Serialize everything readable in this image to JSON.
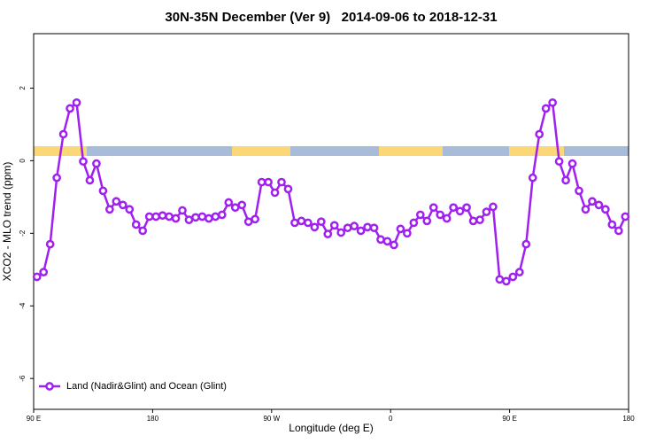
{
  "chart_data": {
    "type": "line",
    "title": "30N-35N December (Ver 9)   2014-09-06 to 2018-12-31",
    "x_label": "Longitude (deg E)",
    "y_label": "XCO2 - MLO trend (ppm)",
    "xlim": [
      90,
      540
    ],
    "xticks": [
      {
        "value": 90,
        "label": "90 E"
      },
      180,
      {
        "value": 270,
        "label": "90 W"
      },
      {
        "value": 360,
        "label": "0"
      },
      {
        "value": 450,
        "label": "90 E"
      },
      {
        "value": 540,
        "label": "180"
      }
    ],
    "ylim": [
      -6.85,
      3.5
    ],
    "yticks": [
      -6,
      -4,
      -2,
      0,
      2
    ],
    "legend": "bottom-left",
    "x": [
      92.5,
      97.5,
      102.5,
      107.5,
      112.5,
      117.5,
      122.5,
      127.5,
      132.5,
      137.5,
      142.5,
      147.5,
      152.5,
      157.5,
      162.5,
      167.5,
      172.5,
      177.5,
      182.5,
      187.5,
      192.5,
      197.5,
      202.5,
      207.5,
      212.5,
      217.5,
      222.5,
      227.5,
      232.5,
      237.5,
      242.5,
      247.5,
      252.5,
      257.5,
      262.5,
      267.5,
      272.5,
      277.5,
      282.5,
      287.5,
      292.5,
      297.5,
      302.5,
      307.5,
      312.5,
      317.5,
      322.5,
      327.5,
      332.5,
      337.5,
      342.5,
      347.5,
      352.5,
      357.5,
      362.5,
      367.5,
      372.5,
      377.5,
      382.5,
      387.5,
      392.5,
      397.5,
      402.5,
      407.5,
      412.5,
      417.5,
      422.5,
      427.5,
      432.5,
      437.5,
      442.5,
      447.5,
      452.5,
      457.5,
      462.5,
      467.5,
      472.5,
      477.5,
      482.5,
      487.5,
      492.5,
      497.5,
      502.5,
      507.5,
      512.5,
      517.5,
      522.5,
      527.5,
      532.5,
      537.5
    ],
    "series": [
      {
        "name": "Land (Nadir&Glint) and Ocean (Glint)",
        "color": "#a020f0",
        "values": [
          -3.2,
          -3.07,
          -2.3,
          -0.47,
          0.73,
          1.44,
          1.6,
          -0.02,
          -0.54,
          -0.08,
          -0.83,
          -1.34,
          -1.12,
          -1.22,
          -1.34,
          -1.76,
          -1.93,
          -1.54,
          -1.54,
          -1.51,
          -1.54,
          -1.59,
          -1.37,
          -1.63,
          -1.56,
          -1.54,
          -1.59,
          -1.54,
          -1.49,
          -1.15,
          -1.29,
          -1.22,
          -1.68,
          -1.61,
          -0.59,
          -0.59,
          -0.88,
          -0.59,
          -0.78,
          -1.71,
          -1.66,
          -1.71,
          -1.83,
          -1.68,
          -2.02,
          -1.78,
          -1.98,
          -1.85,
          -1.8,
          -1.93,
          -1.83,
          -1.85,
          -2.17,
          -2.22,
          -2.32,
          -1.88,
          -2.0,
          -1.71,
          -1.49,
          -1.66,
          -1.29,
          -1.49,
          -1.59,
          -1.29,
          -1.39,
          -1.29,
          -1.66,
          -1.63,
          -1.41,
          -1.27,
          -3.27,
          -3.32,
          -3.2,
          -3.07,
          -2.3,
          -0.47,
          0.73,
          1.44,
          1.6,
          -0.02,
          -0.54,
          -0.08,
          -0.83,
          -1.34,
          -1.12,
          -1.22,
          -1.34,
          -1.76,
          -1.93,
          -1.54
        ]
      }
    ]
  }
}
